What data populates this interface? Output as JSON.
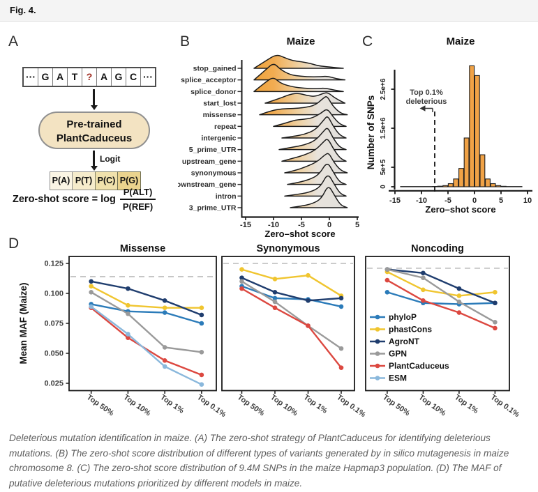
{
  "header": {
    "title": "Fig. 4."
  },
  "colors": {
    "ridge_orange": "#EF9E2D",
    "ridge_gray": "#DFDEDC",
    "hist_bar": "#F0A246",
    "model_box_fill": "#F3E3C2",
    "highlight_red": "#A02C21",
    "dashed_gray": "#C4C4C4"
  },
  "models": [
    {
      "name": "phyloP",
      "color": "#2B7BB9"
    },
    {
      "name": "phastCons",
      "color": "#F0C52F"
    },
    {
      "name": "AgroNT",
      "color": "#1F3D6E"
    },
    {
      "name": "GPN",
      "color": "#9A9A9A"
    },
    {
      "name": "PlantCaduceus",
      "color": "#DC4840"
    },
    {
      "name": "ESM",
      "color": "#8AB8DC"
    }
  ],
  "panel_a": {
    "label": "A",
    "sequence": [
      "···",
      "G",
      "A",
      "T",
      "?",
      "A",
      "G",
      "C",
      "···"
    ],
    "highlight_index": 4,
    "model_box": {
      "line1": "Pre-trained",
      "line2": "PlantCaduceus"
    },
    "logit_label": "Logit",
    "prob_cells": [
      "P(A)",
      "P(T)",
      "P(C)",
      "P(G)"
    ],
    "formula": {
      "lhs": "Zero-shot score = log",
      "numerator": "P(ALT)",
      "denominator": "P(REF)"
    }
  },
  "chart_data": [
    {
      "panel_label": "B",
      "id": "ridgeline",
      "type": "area",
      "title": "Maize",
      "xlabel": "Zero–shot score",
      "x_ticks": [
        -15,
        -10,
        -5,
        0,
        5
      ],
      "xlim": [
        -16,
        6
      ],
      "categories": [
        "stop_gained",
        "splice_acceptor",
        "splice_donor",
        "start_lost",
        "missense",
        "repeat",
        "intergenic",
        "5_prime_UTR",
        "upstream_gene",
        "synonymous",
        "downstream_gene",
        "intron",
        "3_prime_UTR"
      ],
      "series": [
        {
          "name": "stop_gained",
          "points": [
            [
              -13.5,
              0
            ],
            [
              -11.5,
              0.28
            ],
            [
              -9.5,
              0.56
            ],
            [
              -8,
              0.42
            ],
            [
              -6.5,
              0.3
            ],
            [
              -5,
              0.26
            ],
            [
              -3.5,
              0.2
            ],
            [
              -2,
              0.1
            ],
            [
              0,
              0.05
            ],
            [
              2.5,
              0
            ]
          ]
        },
        {
          "name": "splice_acceptor",
          "points": [
            [
              -13.5,
              0
            ],
            [
              -11.5,
              0.38
            ],
            [
              -10,
              0.69
            ],
            [
              -8.8,
              0.42
            ],
            [
              -7,
              0.2
            ],
            [
              -5,
              0.14
            ],
            [
              -3,
              0.12
            ],
            [
              -1.5,
              0.13
            ],
            [
              -0.3,
              0.15
            ],
            [
              1.2,
              0.05
            ],
            [
              2.8,
              0
            ]
          ]
        },
        {
          "name": "splice_donor",
          "points": [
            [
              -13.5,
              0
            ],
            [
              -11.3,
              0.4
            ],
            [
              -10,
              0.58
            ],
            [
              -8.7,
              0.32
            ],
            [
              -6.5,
              0.18
            ],
            [
              -4.5,
              0.13
            ],
            [
              -2.5,
              0.11
            ],
            [
              -0.8,
              0.14
            ],
            [
              0.8,
              0.06
            ],
            [
              2.5,
              0
            ]
          ]
        },
        {
          "name": "start_lost",
          "points": [
            [
              -11.5,
              0
            ],
            [
              -9,
              0.18
            ],
            [
              -7,
              0.36
            ],
            [
              -5.5,
              0.4
            ],
            [
              -4,
              0.3
            ],
            [
              -2.5,
              0.26
            ],
            [
              -1,
              0.4
            ],
            [
              -0.2,
              0.42
            ],
            [
              1,
              0.2
            ],
            [
              2.8,
              0
            ]
          ]
        },
        {
          "name": "missense",
          "points": [
            [
              -12.5,
              0
            ],
            [
              -10.5,
              0.16
            ],
            [
              -8.5,
              0.24
            ],
            [
              -6.5,
              0.25
            ],
            [
              -4.5,
              0.28
            ],
            [
              -2.5,
              0.38
            ],
            [
              -1,
              0.68
            ],
            [
              -0.4,
              0.75
            ],
            [
              0.6,
              0.35
            ],
            [
              2,
              0.06
            ],
            [
              3.2,
              0
            ]
          ]
        },
        {
          "name": "repeat",
          "points": [
            [
              -10,
              0
            ],
            [
              -8,
              0.12
            ],
            [
              -6,
              0.26
            ],
            [
              -4.5,
              0.28
            ],
            [
              -3,
              0.34
            ],
            [
              -1.5,
              0.52
            ],
            [
              -0.4,
              0.72
            ],
            [
              0.6,
              0.4
            ],
            [
              1.8,
              0.1
            ],
            [
              3,
              0
            ]
          ]
        },
        {
          "name": "intergenic",
          "points": [
            [
              -8.5,
              0
            ],
            [
              -6.5,
              0.06
            ],
            [
              -4.5,
              0.14
            ],
            [
              -2.5,
              0.32
            ],
            [
              -1,
              0.72
            ],
            [
              -0.3,
              0.9
            ],
            [
              0.6,
              0.5
            ],
            [
              1.8,
              0.12
            ],
            [
              3,
              0
            ]
          ]
        },
        {
          "name": "5_prime_UTR",
          "points": [
            [
              -9,
              0
            ],
            [
              -6.5,
              0.1
            ],
            [
              -4.5,
              0.18
            ],
            [
              -2.5,
              0.36
            ],
            [
              -1,
              0.74
            ],
            [
              -0.3,
              0.9
            ],
            [
              0.6,
              0.48
            ],
            [
              1.8,
              0.1
            ],
            [
              3,
              0
            ]
          ]
        },
        {
          "name": "upstream_gene",
          "points": [
            [
              -8.5,
              0
            ],
            [
              -6.5,
              0.12
            ],
            [
              -4.5,
              0.24
            ],
            [
              -2.5,
              0.44
            ],
            [
              -1,
              0.78
            ],
            [
              -0.3,
              0.92
            ],
            [
              0.7,
              0.5
            ],
            [
              1.9,
              0.12
            ],
            [
              3,
              0
            ]
          ]
        },
        {
          "name": "synonymous",
          "points": [
            [
              -8,
              0
            ],
            [
              -6,
              0.1
            ],
            [
              -4,
              0.26
            ],
            [
              -2.2,
              0.44
            ],
            [
              -0.8,
              0.72
            ],
            [
              -0.1,
              0.8
            ],
            [
              0.8,
              0.42
            ],
            [
              2,
              0.1
            ],
            [
              3.2,
              0
            ]
          ]
        },
        {
          "name": "downstream_gene",
          "points": [
            [
              -7.5,
              0
            ],
            [
              -5.5,
              0.08
            ],
            [
              -3.5,
              0.2
            ],
            [
              -1.8,
              0.4
            ],
            [
              -0.4,
              0.92
            ],
            [
              0.7,
              0.5
            ],
            [
              1.8,
              0.1
            ],
            [
              3,
              0
            ]
          ]
        },
        {
          "name": "intron",
          "points": [
            [
              -8,
              0
            ],
            [
              -6,
              0.06
            ],
            [
              -3.5,
              0.15
            ],
            [
              -1.6,
              0.36
            ],
            [
              -0.3,
              0.92
            ],
            [
              0.8,
              0.5
            ],
            [
              1.9,
              0.1
            ],
            [
              3,
              0
            ]
          ]
        },
        {
          "name": "3_prime_UTR",
          "points": [
            [
              -7,
              0
            ],
            [
              -5,
              0.06
            ],
            [
              -3,
              0.16
            ],
            [
              -1.4,
              0.36
            ],
            [
              -0.2,
              0.92
            ],
            [
              0.9,
              0.5
            ],
            [
              2,
              0.1
            ],
            [
              3.2,
              0
            ]
          ]
        }
      ]
    },
    {
      "panel_label": "C",
      "id": "histogram",
      "type": "bar",
      "title": "Maize",
      "xlabel": "Zero–shot score",
      "ylabel": "Number of SNPs",
      "x_ticks": [
        -15,
        -10,
        -5,
        0,
        5,
        10
      ],
      "y_ticks": [
        {
          "v": 0,
          "label": "0"
        },
        {
          "v": 500000,
          "label": "5e+5"
        },
        {
          "v": 1500000,
          "label": "1.5e+6"
        },
        {
          "v": 2500000,
          "label": "2.5e+6"
        }
      ],
      "threshold": {
        "x": -7.5,
        "label": "Top 0.1%\ndeleterious"
      },
      "bins": [
        {
          "x0": -14,
          "x1": -8,
          "count": 6000
        },
        {
          "x0": -8,
          "x1": -7,
          "count": 8000
        },
        {
          "x0": -7,
          "x1": -6,
          "count": 15000
        },
        {
          "x0": -6,
          "x1": -5,
          "count": 30000
        },
        {
          "x0": -5,
          "x1": -4,
          "count": 80000
        },
        {
          "x0": -4,
          "x1": -3,
          "count": 200000
        },
        {
          "x0": -3,
          "x1": -2,
          "count": 470000
        },
        {
          "x0": -2,
          "x1": -1,
          "count": 1250000
        },
        {
          "x0": -1,
          "x1": 0,
          "count": 3100000
        },
        {
          "x0": 0,
          "x1": 1,
          "count": 2850000
        },
        {
          "x0": 1,
          "x1": 2,
          "count": 820000
        },
        {
          "x0": 2,
          "x1": 3,
          "count": 200000
        },
        {
          "x0": 3,
          "x1": 4,
          "count": 80000
        },
        {
          "x0": 4,
          "x1": 5,
          "count": 30000
        },
        {
          "x0": 5,
          "x1": 6,
          "count": 12000
        },
        {
          "x0": 6,
          "x1": 9,
          "count": 6000
        }
      ]
    },
    {
      "panel_label": "D",
      "id": "maf",
      "type": "line",
      "ylabel": "Mean MAF (Maize)",
      "categories": [
        "Top 50%",
        "Top 10%",
        "Top 1%",
        "Top 0.1%"
      ],
      "y_tick_labels": [
        "0.125",
        "0.100",
        "0.075",
        "0.050",
        "0.025"
      ],
      "legend": [
        "phyloP",
        "phastCons",
        "AgroNT",
        "GPN",
        "PlantCaduceus",
        "ESM"
      ],
      "subplots": [
        {
          "title": "Missense",
          "dashed_y": 0.114,
          "series": [
            {
              "name": "phyloP",
              "values": [
                0.091,
                0.085,
                0.084,
                0.075
              ]
            },
            {
              "name": "phastCons",
              "values": [
                0.106,
                0.09,
                0.088,
                0.088
              ]
            },
            {
              "name": "AgroNT",
              "values": [
                0.11,
                0.104,
                0.094,
                0.082
              ]
            },
            {
              "name": "GPN",
              "values": [
                0.101,
                0.083,
                0.055,
                0.051
              ]
            },
            {
              "name": "PlantCaduceus",
              "values": [
                0.088,
                0.063,
                0.044,
                0.032
              ]
            },
            {
              "name": "ESM",
              "values": [
                0.089,
                0.066,
                0.039,
                0.024
              ]
            }
          ]
        },
        {
          "title": "Synonymous",
          "dashed_y": 0.125,
          "series": [
            {
              "name": "phyloP",
              "values": [
                0.106,
                0.096,
                0.095,
                0.089
              ]
            },
            {
              "name": "phastCons",
              "values": [
                0.12,
                0.112,
                0.115,
                0.098
              ]
            },
            {
              "name": "AgroNT",
              "values": [
                0.113,
                0.101,
                0.094,
                0.096
              ]
            },
            {
              "name": "GPN",
              "values": [
                0.11,
                0.093,
                0.073,
                0.054
              ]
            },
            {
              "name": "PlantCaduceus",
              "values": [
                0.104,
                0.088,
                0.073,
                0.038
              ]
            }
          ]
        },
        {
          "title": "Noncoding",
          "dashed_y": 0.121,
          "series": [
            {
              "name": "phyloP",
              "values": [
                0.101,
                0.092,
                0.091,
                0.092
              ]
            },
            {
              "name": "phastCons",
              "values": [
                0.118,
                0.103,
                0.098,
                0.101
              ]
            },
            {
              "name": "AgroNT",
              "values": [
                0.12,
                0.117,
                0.104,
                0.092
              ]
            },
            {
              "name": "GPN",
              "values": [
                0.12,
                0.113,
                0.093,
                0.076
              ]
            },
            {
              "name": "PlantCaduceus",
              "values": [
                0.111,
                0.094,
                0.084,
                0.071
              ]
            }
          ]
        }
      ]
    }
  ],
  "caption": {
    "text": "Deleterious mutation identification in maize. (A) The zero-shot strategy of PlantCaduceus for identifying deleterious mutations. (B) The zero-shot score distribution of different types of variants generated by in silico mutagenesis in maize chromosome 8. (C) The zero-shot score distribution of 9.4M SNPs in the maize Hapmap3 population. (D) The MAF of putative deleterious mutations prioritized by different models in maize."
  }
}
